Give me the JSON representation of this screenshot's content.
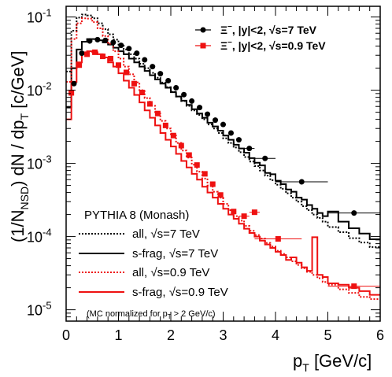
{
  "chart_data": {
    "type": "scatter",
    "log_y": true,
    "xlim": [
      0,
      6
    ],
    "ylim": [
      7e-06,
      0.14
    ],
    "x_ticks": [
      0,
      1,
      2,
      3,
      4,
      5,
      6
    ],
    "x_tick_labels": [
      "0",
      "1",
      "2",
      "3",
      "4",
      "5",
      "6"
    ],
    "y_ticks": [
      1e-05,
      0.0001,
      0.001,
      0.01,
      0.1
    ],
    "y_tick_labels": [
      "10^-5",
      "10^-4",
      "10^-3",
      "10^-2",
      "10^-1"
    ],
    "xlabel": "p_T [GeV/c]",
    "ylabel": "(1/N_NSD) dN / dp_T  [c/GeV]",
    "x_axis_label_main": "p",
    "x_axis_label_sub": "T",
    "x_axis_label_unit": "[GeV/c]",
    "y_axis_label_parts": {
      "a": "(1/N",
      "a_sub": "NSD",
      "b": ") dN / dp",
      "b_sub": "T",
      "c": "[c/GeV]"
    },
    "grid": false,
    "legend_placement": "top-right",
    "data_series": [
      {
        "name": "Ξ⁻, |y|<2,  √s=7 TeV",
        "label_parts": {
          "xi": "Ξ",
          "sup": "−",
          "rest": ", |y|<2,  √s=7 TeV"
        },
        "color": "#000000",
        "marker": "circle",
        "points": [
          {
            "x": 0.15,
            "y": 0.0123,
            "xerr": 0.05
          },
          {
            "x": 0.3,
            "y": 0.032,
            "xerr": 0.05
          },
          {
            "x": 0.45,
            "y": 0.047,
            "xerr": 0.05
          },
          {
            "x": 0.6,
            "y": 0.049,
            "xerr": 0.05
          },
          {
            "x": 0.75,
            "y": 0.048,
            "xerr": 0.05
          },
          {
            "x": 0.9,
            "y": 0.045,
            "xerr": 0.05
          },
          {
            "x": 1.05,
            "y": 0.041,
            "xerr": 0.05
          },
          {
            "x": 1.2,
            "y": 0.037,
            "xerr": 0.05
          },
          {
            "x": 1.35,
            "y": 0.032,
            "xerr": 0.05
          },
          {
            "x": 1.5,
            "y": 0.026,
            "xerr": 0.05
          },
          {
            "x": 1.65,
            "y": 0.021,
            "xerr": 0.05
          },
          {
            "x": 1.8,
            "y": 0.0168,
            "xerr": 0.05
          },
          {
            "x": 1.95,
            "y": 0.0135,
            "xerr": 0.05
          },
          {
            "x": 2.1,
            "y": 0.0108,
            "xerr": 0.05
          },
          {
            "x": 2.25,
            "y": 0.0087,
            "xerr": 0.05
          },
          {
            "x": 2.4,
            "y": 0.0071,
            "xerr": 0.05
          },
          {
            "x": 2.55,
            "y": 0.0058,
            "xerr": 0.05
          },
          {
            "x": 2.7,
            "y": 0.0047,
            "xerr": 0.05
          },
          {
            "x": 2.85,
            "y": 0.0039,
            "xerr": 0.05
          },
          {
            "x": 3.0,
            "y": 0.0034,
            "xerr": 0.05
          },
          {
            "x": 3.15,
            "y": 0.0026,
            "xerr": 0.05
          },
          {
            "x": 3.3,
            "y": 0.0021,
            "xerr": 0.05
          },
          {
            "x": 3.5,
            "y": 0.0016,
            "xerr": 0.1
          },
          {
            "x": 3.8,
            "y": 0.00117,
            "xerr": 0.2
          },
          {
            "x": 4.5,
            "y": 0.00056,
            "xerr": 0.5
          },
          {
            "x": 5.5,
            "y": 0.00021,
            "xerr": 0.5
          }
        ]
      },
      {
        "name": "Ξ⁻, |y|<2,  √s=0.9 TeV",
        "label_parts": {
          "xi": "Ξ",
          "sup": "−",
          "rest": ", |y|<2,  √s=0.9 TeV"
        },
        "color": "#ee1111",
        "marker": "square",
        "points": [
          {
            "x": 0.1,
            "y": 0.0092,
            "xerr": 0.05
          },
          {
            "x": 0.25,
            "y": 0.022,
            "xerr": 0.05
          },
          {
            "x": 0.4,
            "y": 0.031,
            "xerr": 0.05
          },
          {
            "x": 0.55,
            "y": 0.033,
            "xerr": 0.05
          },
          {
            "x": 0.7,
            "y": 0.029,
            "xerr": 0.05
          },
          {
            "x": 0.85,
            "y": 0.027,
            "xerr": 0.05
          },
          {
            "x": 1.0,
            "y": 0.022,
            "xerr": 0.05
          },
          {
            "x": 1.15,
            "y": 0.0175,
            "xerr": 0.05
          },
          {
            "x": 1.3,
            "y": 0.0123,
            "xerr": 0.05
          },
          {
            "x": 1.45,
            "y": 0.0093,
            "xerr": 0.05
          },
          {
            "x": 1.6,
            "y": 0.0065,
            "xerr": 0.05
          },
          {
            "x": 1.75,
            "y": 0.0048,
            "xerr": 0.05
          },
          {
            "x": 1.9,
            "y": 0.0033,
            "xerr": 0.05
          },
          {
            "x": 2.05,
            "y": 0.0024,
            "xerr": 0.05
          },
          {
            "x": 2.2,
            "y": 0.00175,
            "xerr": 0.05
          },
          {
            "x": 2.35,
            "y": 0.0013,
            "xerr": 0.05
          },
          {
            "x": 2.5,
            "y": 0.00095,
            "xerr": 0.05
          },
          {
            "x": 2.65,
            "y": 0.00072,
            "xerr": 0.05
          },
          {
            "x": 2.8,
            "y": 0.00052,
            "xerr": 0.05
          },
          {
            "x": 2.95,
            "y": 0.00037,
            "xerr": 0.05
          },
          {
            "x": 3.2,
            "y": 0.00022,
            "xerr": 0.05
          },
          {
            "x": 3.4,
            "y": 0.00019,
            "xerr": 0.1
          },
          {
            "x": 3.6,
            "y": 0.000215,
            "xerr": 0.1
          },
          {
            "x": 4.05,
            "y": 9.3e-05,
            "xerr": 0.45
          },
          {
            "x": 5.5,
            "y": 2.1e-05,
            "xerr": 0.5
          }
        ]
      }
    ],
    "model_series": [
      {
        "name": "all, √s=7 TeV",
        "label_parts": {
          "pre": "all, ",
          "rest": "s=7 TeV"
        },
        "color": "#000000",
        "dash": "dotted",
        "bins": [
          0,
          0.1,
          0.2,
          0.3,
          0.4,
          0.5,
          0.6,
          0.7,
          0.8,
          0.9,
          1.0,
          1.1,
          1.2,
          1.3,
          1.4,
          1.5,
          1.6,
          1.7,
          1.8,
          1.9,
          2.0,
          2.1,
          2.2,
          2.3,
          2.4,
          2.5,
          2.6,
          2.7,
          2.8,
          2.9,
          3.0,
          3.1,
          3.2,
          3.3,
          3.4,
          3.5,
          3.6,
          3.7,
          3.8,
          3.9,
          4.0,
          4.1,
          4.2,
          4.3,
          4.4,
          4.5,
          4.6,
          4.7,
          4.8,
          4.9,
          5.0,
          5.2,
          5.4,
          5.6,
          5.8,
          6.0
        ],
        "values": [
          0.018,
          0.065,
          0.098,
          0.108,
          0.105,
          0.096,
          0.082,
          0.068,
          0.058,
          0.049,
          0.042,
          0.036,
          0.031,
          0.027,
          0.023,
          0.02,
          0.0172,
          0.0148,
          0.0127,
          0.011,
          0.0095,
          0.0082,
          0.0071,
          0.0061,
          0.0053,
          0.0046,
          0.004,
          0.0034,
          0.003,
          0.0026,
          0.0022,
          0.0019,
          0.00165,
          0.00142,
          0.00122,
          0.00106,
          0.00092,
          0.0008,
          0.00068,
          0.00059,
          0.00051,
          0.00045,
          0.00039,
          0.00034,
          0.0003,
          0.00026,
          0.00023,
          0.0002,
          0.00018,
          0.00016,
          0.000135,
          0.000115,
          9.5e-05,
          8.3e-05,
          7.2e-05
        ]
      },
      {
        "name": "s-frag, √s=7 TeV",
        "label_parts": {
          "pre": "s-frag, ",
          "rest": "s=7 TeV"
        },
        "color": "#000000",
        "dash": "solid",
        "bins": [
          0,
          0.1,
          0.2,
          0.3,
          0.4,
          0.5,
          0.6,
          0.7,
          0.8,
          0.9,
          1.0,
          1.1,
          1.2,
          1.3,
          1.4,
          1.5,
          1.6,
          1.7,
          1.8,
          1.9,
          2.0,
          2.1,
          2.2,
          2.3,
          2.4,
          2.5,
          2.6,
          2.7,
          2.8,
          2.9,
          3.0,
          3.1,
          3.2,
          3.3,
          3.4,
          3.5,
          3.6,
          3.7,
          3.8,
          3.9,
          4.0,
          4.1,
          4.2,
          4.3,
          4.4,
          4.5,
          4.6,
          4.7,
          4.8,
          4.9,
          5.0,
          5.2,
          5.4,
          5.6,
          5.8,
          6.0
        ],
        "values": [
          0.0058,
          0.02,
          0.036,
          0.046,
          0.05,
          0.05,
          0.048,
          0.045,
          0.042,
          0.038,
          0.034,
          0.031,
          0.027,
          0.024,
          0.021,
          0.0183,
          0.016,
          0.014,
          0.0123,
          0.0108,
          0.0094,
          0.0082,
          0.0072,
          0.0063,
          0.0055,
          0.0048,
          0.0042,
          0.0036,
          0.0032,
          0.0028,
          0.0024,
          0.0021,
          0.0018,
          0.0016,
          0.0014,
          0.00118,
          0.00102,
          0.00094,
          0.00074,
          0.00071,
          0.00058,
          0.00052,
          0.00044,
          0.00041,
          0.00034,
          0.00032,
          0.00027,
          0.00024,
          0.00021,
          0.00019,
          0.00022,
          0.00016,
          0.00013,
          0.00011,
          9.2e-05
        ]
      },
      {
        "name": "all, √s=0.9 TeV",
        "label_parts": {
          "pre": "all, ",
          "rest": "s=0.9 TeV"
        },
        "color": "#ee1111",
        "dash": "dotted",
        "bins": [
          0,
          0.1,
          0.2,
          0.3,
          0.4,
          0.5,
          0.6,
          0.7,
          0.8,
          0.9,
          1.0,
          1.1,
          1.2,
          1.3,
          1.4,
          1.5,
          1.6,
          1.7,
          1.8,
          1.9,
          2.0,
          2.1,
          2.2,
          2.3,
          2.4,
          2.5,
          2.6,
          2.7,
          2.8,
          2.9,
          3.0,
          3.1,
          3.2,
          3.3,
          3.4,
          3.5,
          3.6,
          3.7,
          3.8,
          3.9,
          4.0,
          4.1,
          4.2,
          4.3,
          4.4,
          4.5,
          4.6,
          4.7,
          4.8,
          4.9,
          5.0,
          5.2,
          5.4,
          5.6,
          5.8,
          6.0
        ],
        "values": [
          0.013,
          0.05,
          0.082,
          0.096,
          0.095,
          0.085,
          0.07,
          0.055,
          0.043,
          0.034,
          0.027,
          0.021,
          0.0165,
          0.0128,
          0.01,
          0.0078,
          0.0061,
          0.0048,
          0.0038,
          0.003,
          0.0024,
          0.0019,
          0.0015,
          0.0012,
          0.00096,
          0.00077,
          0.00062,
          0.0005,
          0.00041,
          0.00034,
          0.00028,
          0.00023,
          0.00019,
          0.000165,
          0.00014,
          0.00012,
          0.000105,
          9.4e-05,
          8.2e-05,
          7.3e-05,
          6.4e-05,
          5.8e-05,
          5.2e-05,
          4.6e-05,
          4.1e-05,
          3.7e-05,
          3.3e-05,
          3e-05,
          2.7e-05,
          2.4e-05,
          2.2e-05,
          1.9e-05,
          1.7e-05,
          1.5e-05,
          1.4e-05
        ]
      },
      {
        "name": "s-frag, √s=0.9 TeV",
        "label_parts": {
          "pre": "s-frag, ",
          "rest": "s=0.9 TeV"
        },
        "color": "#ee1111",
        "dash": "solid",
        "bins": [
          0,
          0.1,
          0.2,
          0.3,
          0.4,
          0.5,
          0.6,
          0.7,
          0.8,
          0.9,
          1.0,
          1.1,
          1.2,
          1.3,
          1.4,
          1.5,
          1.6,
          1.7,
          1.8,
          1.9,
          2.0,
          2.1,
          2.2,
          2.3,
          2.4,
          2.5,
          2.6,
          2.7,
          2.8,
          2.9,
          3.0,
          3.1,
          3.2,
          3.3,
          3.4,
          3.5,
          3.6,
          3.7,
          3.8,
          3.9,
          4.0,
          4.1,
          4.2,
          4.3,
          4.4,
          4.5,
          4.6,
          4.7,
          4.8,
          4.9,
          5.0,
          5.2,
          5.4,
          5.6,
          5.8,
          6.0
        ],
        "values": [
          0.004,
          0.013,
          0.024,
          0.031,
          0.034,
          0.033,
          0.031,
          0.028,
          0.024,
          0.021,
          0.017,
          0.0135,
          0.0108,
          0.0086,
          0.0068,
          0.0053,
          0.0042,
          0.0033,
          0.0026,
          0.0021,
          0.0017,
          0.00135,
          0.00108,
          0.00088,
          0.00072,
          0.0006,
          0.00048,
          0.0004,
          0.00034,
          0.00028,
          0.00024,
          0.0002,
          0.000175,
          0.00015,
          0.000128,
          0.000112,
          0.0001,
          8.8e-05,
          7.8e-05,
          7e-05,
          6.2e-05,
          5.6e-05,
          4.8e-05,
          5.2e-05,
          4.4e-05,
          3.8e-05,
          3.4e-05,
          9.8e-05,
          3e-05,
          2.8e-05,
          2.3e-05,
          2.2e-05,
          2e-05,
          1.8e-05,
          1.6e-05
        ]
      }
    ],
    "legend_model_header": "PYTHIA 8 (Monash)",
    "annotation": {
      "pre": "(MC normalized for p",
      "sub": "T",
      "post": " > 2 GeV/c)"
    },
    "sqrt_symbol": "√"
  }
}
